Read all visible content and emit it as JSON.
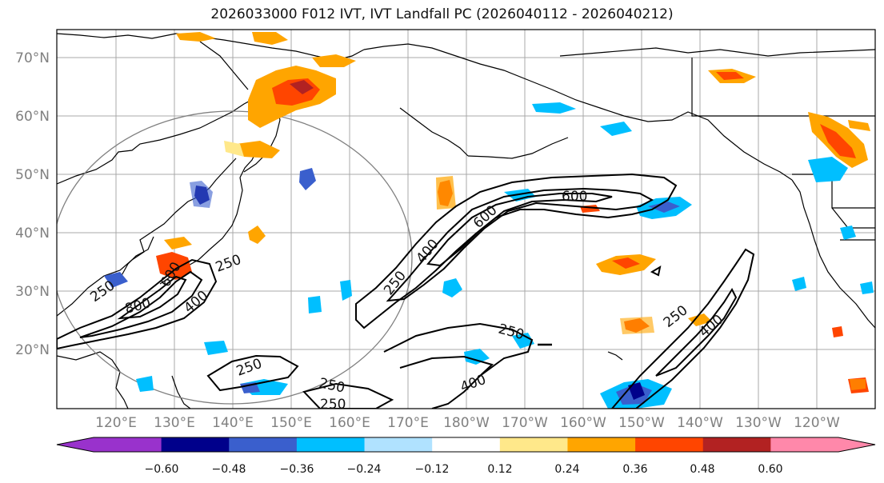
{
  "title": "2026033000 F012 IVT, IVT Landfall PC (2026040112 - 2026040212)",
  "latitude_labels": [
    "70°N",
    "60°N",
    "50°N",
    "40°N",
    "30°N",
    "20°N"
  ],
  "longitude_labels": [
    "120°E",
    "130°E",
    "140°E",
    "150°E",
    "160°E",
    "170°E",
    "180°W",
    "170°W",
    "160°W",
    "150°W",
    "140°W",
    "130°W",
    "120°W"
  ],
  "contour_labels": [
    "600",
    "600",
    "400",
    "250",
    "250",
    "800",
    "400",
    "250",
    "600",
    "250",
    "250",
    "250",
    "400",
    "250",
    "400",
    "250"
  ],
  "colorbar": {
    "ticks": [
      "−0.60",
      "−0.48",
      "−0.36",
      "−0.24",
      "−0.12",
      "0.12",
      "0.24",
      "0.36",
      "0.48",
      "0.60"
    ],
    "colors": [
      "#9932cc",
      "#00008b",
      "#3a5fcd",
      "#00bfff",
      "#b0e2ff",
      "#ffffff",
      "#ffe88a",
      "#ffa500",
      "#ff4500",
      "#b22222",
      "#ff88aa"
    ]
  }
}
